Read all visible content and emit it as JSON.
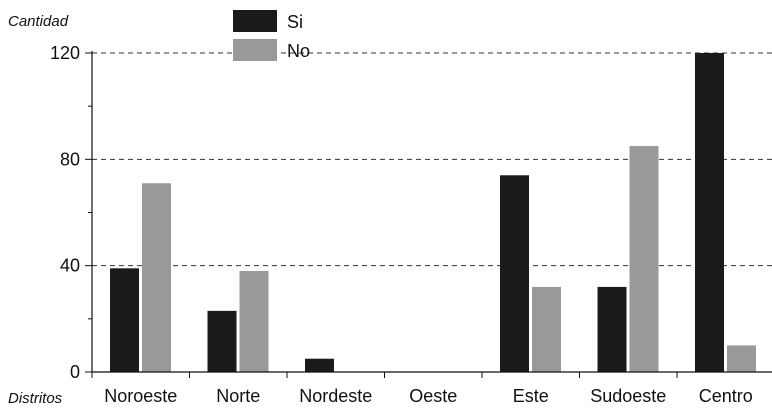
{
  "chart_data": {
    "type": "bar",
    "ylabel": "Cantidad",
    "xlabel": "Distritos",
    "categories": [
      "Noroeste",
      "Norte",
      "Nordeste",
      "Oeste",
      "Este",
      "Sudoeste",
      "Centro"
    ],
    "series": [
      {
        "name": "Si",
        "color": "#1a1a1a",
        "values": [
          39,
          23,
          5,
          0,
          74,
          32,
          120
        ]
      },
      {
        "name": "No",
        "color": "#999999",
        "values": [
          71,
          38,
          0,
          0,
          32,
          85,
          10
        ]
      }
    ],
    "yticks": [
      0,
      40,
      80,
      120
    ],
    "ylim": [
      0,
      120
    ],
    "grid": "dashed horizontal at 40, 80, 120",
    "legend": "top-left"
  }
}
